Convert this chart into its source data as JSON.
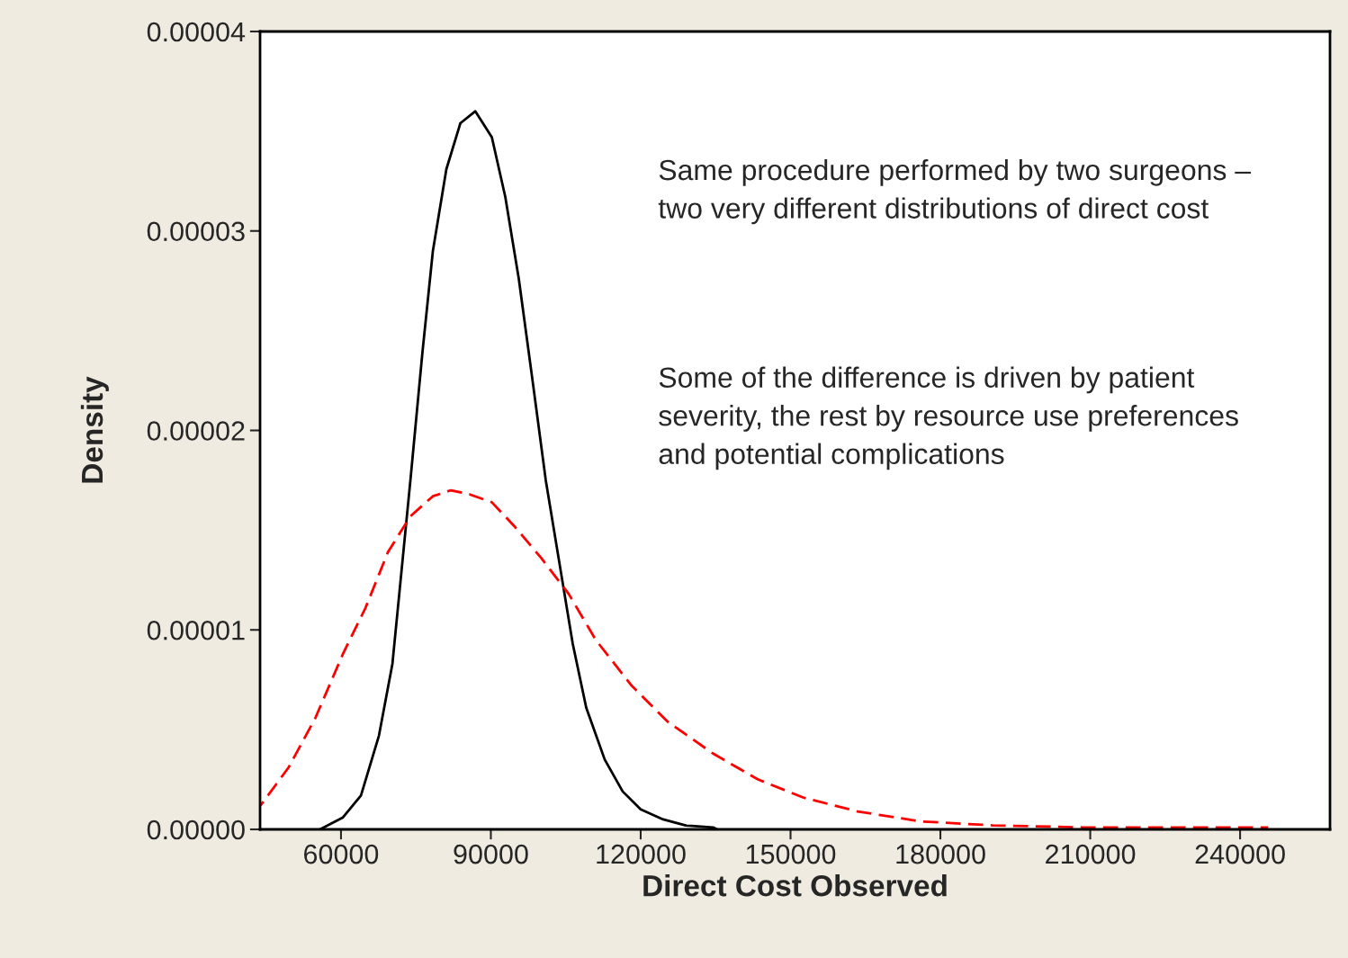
{
  "chart_data": {
    "type": "line",
    "xlabel": "Direct Cost Observed",
    "ylabel": "Density",
    "xlim": [
      43800,
      258000
    ],
    "xticks": [
      60000,
      90000,
      120000,
      150000,
      180000,
      210000,
      240000
    ],
    "ylim": [
      0,
      4e-05
    ],
    "yticks": [
      {
        "value": 0,
        "label": "0.00000"
      },
      {
        "value": 1e-05,
        "label": "0.00001"
      },
      {
        "value": 2e-05,
        "label": "0.00002"
      },
      {
        "value": 3e-05,
        "label": "0.00003"
      },
      {
        "value": 4e-05,
        "label": "0.00004"
      }
    ],
    "grid": false,
    "legend": false,
    "series": [
      {
        "color": "#000000",
        "line_style": "solid",
        "x": [
          55800,
          60400,
          64000,
          67600,
          70300,
          72100,
          73900,
          76300,
          78400,
          81100,
          83900,
          86900,
          90200,
          92900,
          95600,
          98300,
          101000,
          103700,
          106400,
          109100,
          112800,
          116400,
          120000,
          124500,
          129000,
          134500,
          135300
        ],
        "values": [
          0,
          6e-07,
          1.7e-06,
          4.7e-06,
          8.3e-06,
          1.29e-05,
          1.75e-05,
          2.39e-05,
          2.9e-05,
          3.31e-05,
          3.54e-05,
          3.6e-05,
          3.47e-05,
          3.17e-05,
          2.76e-05,
          2.26e-05,
          1.75e-05,
          1.34e-05,
          9.3e-06,
          6.1e-06,
          3.5e-06,
          1.9e-06,
          1e-06,
          5e-07,
          2e-07,
          1e-07,
          0
        ]
      },
      {
        "color": "#ff0000",
        "line_style": "dashed",
        "x": [
          43900,
          49500,
          54900,
          60400,
          64900,
          69400,
          73900,
          78400,
          82000,
          85700,
          90200,
          94700,
          100100,
          105600,
          111000,
          118200,
          125400,
          134500,
          143500,
          152500,
          163400,
          176000,
          190500,
          208500,
          245600
        ],
        "values": [
          1.2e-06,
          3.1e-06,
          5.6e-06,
          8.8e-06,
          1.11e-05,
          1.39e-05,
          1.57e-05,
          1.67e-05,
          1.7e-05,
          1.68e-05,
          1.64e-05,
          1.52e-05,
          1.36e-05,
          1.18e-05,
          9.5e-06,
          7.2e-06,
          5.4e-06,
          3.8e-06,
          2.5e-06,
          1.6e-06,
          9e-07,
          4e-07,
          2e-07,
          1e-07,
          1e-07
        ]
      }
    ],
    "annotations": [
      "Same procedure performed by two surgeons – two very different distributions of direct cost",
      "Some of the difference is driven by patient severity, the rest by resource use preferences and potential complications"
    ]
  }
}
